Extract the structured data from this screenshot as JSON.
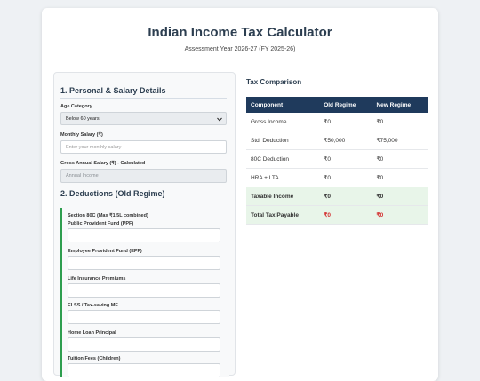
{
  "header": {
    "title": "Indian Income Tax Calculator",
    "subtitle": "Assessment Year 2026-27 (FY 2025-26)"
  },
  "form": {
    "section1": {
      "title": "1. Personal & Salary Details",
      "age_label": "Age Category",
      "age_value": "Below 60 years",
      "monthly_label": "Monthly Salary (₹)",
      "monthly_placeholder": "Enter your monthly salary",
      "gross_label": "Gross Annual Salary (₹) - Calculated",
      "gross_placeholder": "Annual Income"
    },
    "section2": {
      "title": "2. Deductions (Old Regime)",
      "group_title": "Section 80C (Max ₹1.5L combined)",
      "fields": [
        "Public Provident Fund (PPF)",
        "Employee Provident Fund (EPF)",
        "Life Insurance Premiums",
        "ELSS / Tax-saving MF",
        "Home Loan Principal",
        "Tuition Fees (Children)"
      ]
    }
  },
  "comparison": {
    "title": "Tax Comparison",
    "columns": [
      "Component",
      "Old Regime",
      "New Regime"
    ],
    "rows": [
      [
        "Gross Income",
        "₹0",
        "₹0"
      ],
      [
        "Std. Deduction",
        "₹50,000",
        "₹75,000"
      ],
      [
        "80C Deduction",
        "₹0",
        "₹0"
      ],
      [
        "HRA + LTA",
        "₹0",
        "₹0"
      ],
      [
        "Taxable Income",
        "₹0",
        "₹0"
      ],
      [
        "Total Tax Payable",
        "₹0",
        "₹0"
      ]
    ]
  }
}
